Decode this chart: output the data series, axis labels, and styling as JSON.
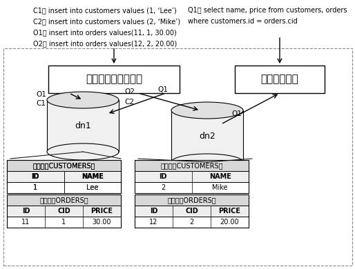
{
  "bg_color": "#ffffff",
  "figsize": [
    5.14,
    3.9
  ],
  "dpi": 100,
  "annotations_left": [
    "C1： insert into customers values (1, ‘Lee’)",
    "C2： insert into customers values (2, ‘Mike’)",
    "O1： insert into orders values(11, 1, 30.00)",
    "O2： insert into orders values(12, 2, 20.00)"
  ],
  "annotations_right": [
    "Q1： select name, price from customers, orders",
    "where customers.id = orders.cid"
  ],
  "box1_label": "分片表关联处理模块",
  "box2_label": "查询合并模块",
  "dn1_label": "dn1",
  "dn2_label": "dn2",
  "t1c_title": "分片表（CUSTOMERS）",
  "t1c_headers": [
    "ID",
    "NAME"
  ],
  "t1c_row": [
    "1",
    "Lee"
  ],
  "t1o_title": "分片表（ORDERS）",
  "t1o_headers": [
    "ID",
    "CID",
    "PRICE"
  ],
  "t1o_row": [
    "11",
    "1",
    "30.00"
  ],
  "t2c_title": "分片表（CUSTOMERS）",
  "t2c_headers": [
    "ID",
    "NAME"
  ],
  "t2c_row": [
    "2",
    "Mike"
  ],
  "t2o_title": "分片表（ORDERS）",
  "t2o_headers": [
    "ID",
    "CID",
    "PRICE"
  ],
  "t2o_row": [
    "12",
    "2",
    "20.00"
  ],
  "label_O1": "O1",
  "label_C1": "C1",
  "label_O2": "O2",
  "label_C2": "C2",
  "label_Q1a": "Q1",
  "label_Q1b": "Q1"
}
